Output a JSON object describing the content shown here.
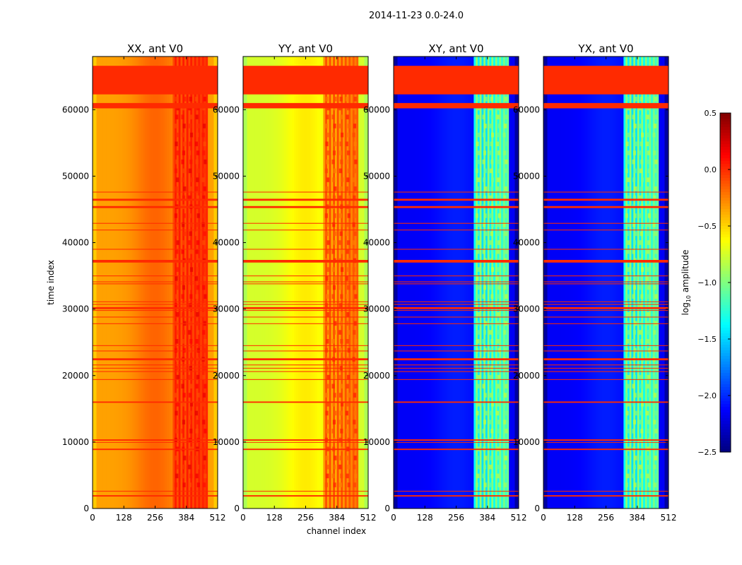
{
  "chart_data": {
    "type": "heatmap",
    "title": "2014-11-23 0.0-24.0",
    "xlabel": "channel index",
    "ylabel": "time index",
    "xlim": [
      0,
      512
    ],
    "ylim": [
      0,
      68000
    ],
    "x_ticks": [
      "0",
      "128",
      "256",
      "384",
      "512"
    ],
    "x_tick_values": [
      0,
      128,
      256,
      384,
      512
    ],
    "y_ticks": [
      "0",
      "10000",
      "20000",
      "30000",
      "40000",
      "50000",
      "60000"
    ],
    "y_tick_values": [
      0,
      10000,
      20000,
      30000,
      40000,
      50000,
      60000
    ],
    "colorbar": {
      "label_prefix": "log",
      "label_sub": "10",
      "label_suffix": " amplitude",
      "range": [
        -2.5,
        0.5
      ],
      "ticks": [
        "0.5",
        "0.0",
        "−0.5",
        "−1.0",
        "−1.5",
        "−2.0",
        "−2.5"
      ],
      "tick_values": [
        0.5,
        0.0,
        -0.5,
        -1.0,
        -1.5,
        -2.0,
        -2.5
      ],
      "colormap": "jet"
    },
    "flagged_value": 0.0,
    "flagged_time_bands": [
      [
        62300,
        66600
      ],
      [
        60200,
        61000
      ],
      [
        46300,
        46600
      ],
      [
        45200,
        45500
      ],
      [
        37000,
        37400
      ],
      [
        30000,
        30300
      ],
      [
        22300,
        22600
      ],
      [
        15900,
        16100
      ],
      [
        10200,
        10400
      ],
      [
        9900,
        10000
      ],
      [
        8800,
        9000
      ],
      [
        1800,
        2000
      ]
    ],
    "thin_flag_lines": [
      47600,
      42900,
      41900,
      39000,
      35000,
      34100,
      33800,
      31100,
      30700,
      29800,
      28800,
      27800,
      24500,
      23700,
      21600,
      21100,
      20600,
      19400,
      2600
    ],
    "panels": [
      {
        "name": "XX, ant V0",
        "background_level": -0.35,
        "feature_level": 0.05
      },
      {
        "name": "YY, ant V0",
        "background_level": -0.75,
        "feature_level": -0.1
      },
      {
        "name": "XY, ant V0",
        "background_level": -2.15,
        "feature_level": -0.95
      },
      {
        "name": "YX, ant V0",
        "background_level": -2.15,
        "feature_level": -0.95
      }
    ]
  }
}
